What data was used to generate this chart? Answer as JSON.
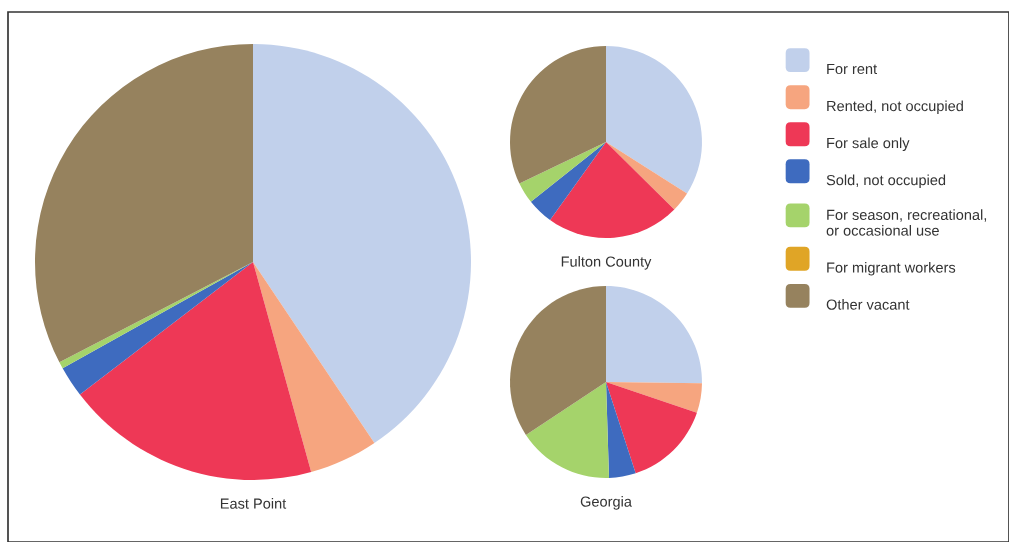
{
  "chart_data": {
    "type": "pie",
    "legend": "right",
    "categories": [
      "For rent",
      "Rented, not occupied",
      "For sale only",
      "Sold, not occupied",
      "For season, recreational,\nor occasional use",
      "For migrant workers",
      "Other vacant"
    ],
    "colors": [
      "#c1d0eb",
      "#f6a57f",
      "#ee3856",
      "#3e6bbf",
      "#a5d36b",
      "#e0a526",
      "#96825e"
    ],
    "series": [
      {
        "name": "East Point",
        "values": [
          40.6,
          5.1,
          18.9,
          2.3,
          0.5,
          0,
          32.6
        ]
      },
      {
        "name": "Fulton County",
        "values": [
          34.0,
          3.4,
          22.5,
          4.4,
          3.6,
          0,
          32.1
        ]
      },
      {
        "name": "Georgia",
        "values": [
          25.2,
          5.0,
          14.8,
          4.5,
          16.2,
          0,
          34.3
        ]
      }
    ]
  }
}
